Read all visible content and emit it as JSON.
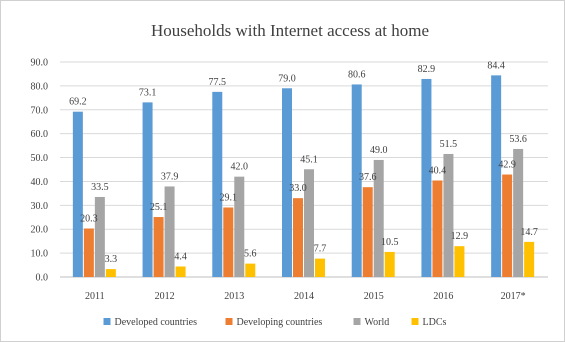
{
  "chart_data": {
    "type": "bar",
    "title": "Households with Internet access at home",
    "categories": [
      "2011",
      "2012",
      "2013",
      "2014",
      "2015",
      "2016",
      "2017*"
    ],
    "series": [
      {
        "name": "Developed countries",
        "color": "#5b9bd5",
        "values": [
          69.2,
          73.1,
          77.5,
          79.0,
          80.6,
          82.9,
          84.4
        ]
      },
      {
        "name": "Developing countries",
        "color": "#ed7d31",
        "values": [
          20.3,
          25.1,
          29.1,
          33.0,
          37.6,
          40.4,
          42.9
        ]
      },
      {
        "name": "World",
        "color": "#a5a5a5",
        "values": [
          33.5,
          37.9,
          42.0,
          45.1,
          49.0,
          51.5,
          53.6
        ]
      },
      {
        "name": "LDCs",
        "color": "#ffc000",
        "values": [
          3.3,
          4.4,
          5.6,
          7.7,
          10.5,
          12.9,
          14.7
        ]
      }
    ],
    "ylim": [
      0,
      90
    ],
    "yticks": [
      "0.0",
      "10.0",
      "20.0",
      "30.0",
      "40.0",
      "50.0",
      "60.0",
      "70.0",
      "80.0",
      "90.0"
    ],
    "grid": true,
    "legend_position": "bottom"
  }
}
